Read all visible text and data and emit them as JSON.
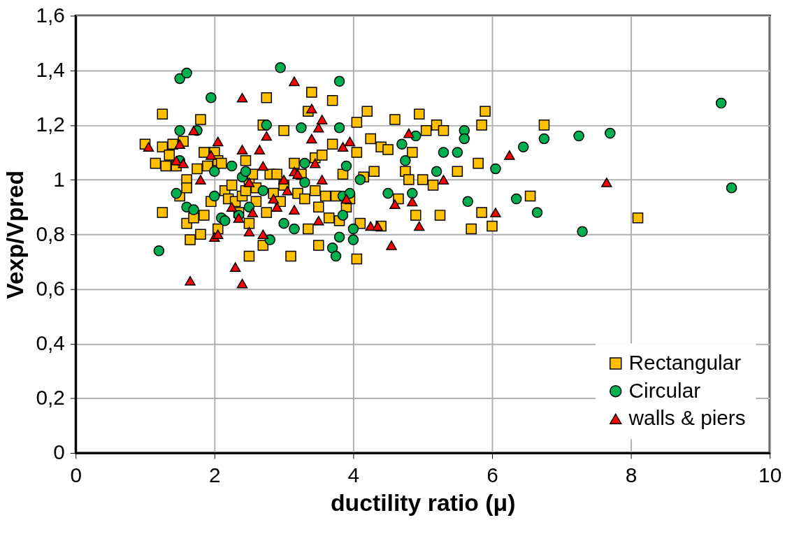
{
  "chart_data": {
    "type": "scatter",
    "xlabel": "ductility ratio (μ)",
    "ylabel": "Vexp/Vpred",
    "xlim": [
      0,
      10
    ],
    "xticks": [
      0,
      2,
      4,
      6,
      8,
      10
    ],
    "ylim": [
      0,
      1.6
    ],
    "yticks": [
      0,
      {
        "value": 0.2,
        "label": "0,2"
      },
      {
        "value": 0.4,
        "label": "0,4"
      },
      {
        "value": 0.6,
        "label": "0,6"
      },
      {
        "value": 0.8,
        "label": "0,8"
      },
      1,
      {
        "value": 1.2,
        "label": "1,2"
      },
      {
        "value": 1.4,
        "label": "1,4"
      },
      {
        "value": 1.6,
        "label": "1,6"
      }
    ],
    "grid": true,
    "legend": "bottom right",
    "series": [
      {
        "name": "Rectangular",
        "color": "#ffc000",
        "marker": "square",
        "x": [
          1.0,
          1.15,
          1.25,
          1.25,
          1.25,
          1.3,
          1.35,
          1.4,
          1.45,
          1.5,
          1.55,
          1.6,
          1.6,
          1.6,
          1.65,
          1.7,
          1.75,
          1.8,
          1.8,
          1.85,
          1.85,
          1.9,
          1.95,
          2.0,
          2.05,
          2.05,
          2.1,
          2.15,
          2.2,
          2.25,
          2.3,
          2.35,
          2.4,
          2.45,
          2.45,
          2.5,
          2.5,
          2.5,
          2.55,
          2.6,
          2.6,
          2.7,
          2.75,
          2.7,
          2.75,
          2.8,
          2.85,
          2.9,
          2.95,
          3.0,
          3.0,
          3.1,
          3.15,
          3.2,
          3.25,
          3.3,
          3.35,
          3.35,
          3.4,
          3.45,
          3.45,
          3.5,
          3.5,
          3.55,
          3.6,
          3.65,
          3.7,
          3.7,
          3.75,
          3.8,
          3.85,
          3.9,
          3.95,
          4.05,
          4.05,
          4.05,
          4.1,
          4.15,
          4.2,
          4.25,
          4.3,
          4.4,
          4.4,
          4.5,
          4.6,
          4.65,
          4.75,
          4.8,
          4.85,
          4.9,
          4.95,
          5.0,
          5.05,
          5.15,
          5.2,
          5.25,
          5.3,
          5.5,
          5.7,
          5.8,
          5.85,
          5.85,
          5.9,
          6.0,
          6.55,
          6.75,
          8.1
        ],
        "values": [
          1.13,
          1.06,
          1.24,
          0.88,
          1.12,
          1.05,
          1.09,
          1.13,
          1.05,
          0.94,
          1.14,
          1.0,
          0.97,
          0.84,
          0.78,
          0.86,
          1.04,
          1.22,
          0.8,
          1.1,
          0.87,
          1.05,
          0.92,
          1.1,
          1.07,
          0.82,
          1.06,
          0.96,
          0.93,
          0.98,
          0.92,
          0.88,
          0.94,
          1.07,
          0.96,
          1.0,
          0.84,
          0.72,
          1.02,
          0.97,
          0.92,
          1.2,
          1.3,
          0.76,
          0.88,
          1.02,
          0.95,
          1.02,
          0.92,
          1.18,
          0.98,
          0.72,
          1.06,
          0.95,
          1.02,
          0.93,
          0.82,
          1.25,
          1.32,
          1.08,
          0.96,
          0.76,
          0.9,
          1.09,
          0.94,
          0.86,
          1.29,
          1.13,
          0.94,
          0.85,
          1.02,
          0.9,
          0.93,
          0.71,
          1.1,
          1.21,
          0.84,
          1.01,
          1.25,
          1.15,
          1.03,
          0.83,
          1.12,
          1.11,
          1.22,
          0.93,
          1.03,
          1.0,
          1.1,
          0.87,
          1.24,
          1.0,
          1.18,
          0.98,
          1.2,
          0.87,
          1.18,
          1.03,
          0.82,
          1.06,
          0.88,
          1.2,
          1.25,
          0.83,
          0.94,
          1.2,
          0.86
        ]
      },
      {
        "name": "Circular",
        "color": "#00b050",
        "marker": "circle",
        "x": [
          1.2,
          1.45,
          1.5,
          1.6,
          1.5,
          1.5,
          1.6,
          1.7,
          1.75,
          1.95,
          2.0,
          2.0,
          2.1,
          2.15,
          2.25,
          2.35,
          2.4,
          2.45,
          2.5,
          2.7,
          2.75,
          2.8,
          2.95,
          3.0,
          3.15,
          3.25,
          3.3,
          3.3,
          3.7,
          3.75,
          3.8,
          3.8,
          3.85,
          3.85,
          3.8,
          3.9,
          3.95,
          4.0,
          4.0,
          4.1,
          4.5,
          4.7,
          4.75,
          4.85,
          4.9,
          5.2,
          5.3,
          5.5,
          5.6,
          5.6,
          5.65,
          6.05,
          6.35,
          6.45,
          6.65,
          6.75,
          7.25,
          7.3,
          7.7,
          9.3,
          9.45
        ],
        "values": [
          0.74,
          0.95,
          1.37,
          1.39,
          1.18,
          1.07,
          0.9,
          0.89,
          1.18,
          1.3,
          1.03,
          0.94,
          0.86,
          0.85,
          1.05,
          0.87,
          1.01,
          1.03,
          0.9,
          0.96,
          1.2,
          0.78,
          1.41,
          0.84,
          0.82,
          1.19,
          1.06,
          0.99,
          0.75,
          0.72,
          1.19,
          1.36,
          0.94,
          0.87,
          0.79,
          1.05,
          0.95,
          0.78,
          0.82,
          1.0,
          0.95,
          1.13,
          1.07,
          0.95,
          1.16,
          1.03,
          1.1,
          1.1,
          1.18,
          1.15,
          0.92,
          1.04,
          0.93,
          1.12,
          0.88,
          1.15,
          1.16,
          0.81,
          1.17,
          1.28,
          0.97
        ]
      },
      {
        "name": "walls & piers",
        "color": "#ff0000",
        "marker": "triangle",
        "x": [
          1.05,
          1.45,
          1.5,
          1.55,
          1.65,
          1.7,
          1.8,
          1.95,
          2.0,
          2.05,
          2.05,
          2.25,
          2.3,
          2.35,
          2.4,
          2.4,
          2.4,
          2.5,
          2.5,
          2.55,
          2.65,
          2.7,
          2.7,
          2.75,
          2.85,
          2.9,
          3.0,
          3.05,
          3.15,
          3.15,
          3.15,
          3.2,
          3.4,
          3.4,
          3.45,
          3.5,
          3.5,
          3.55,
          3.55,
          3.85,
          3.95,
          3.9,
          4.25,
          4.35,
          4.55,
          4.6,
          4.8,
          4.85,
          4.95,
          5.3,
          6.05,
          6.25,
          7.65
        ],
        "values": [
          1.12,
          1.07,
          1.13,
          1.06,
          0.63,
          1.18,
          1.0,
          1.09,
          0.79,
          0.8,
          1.14,
          0.9,
          0.68,
          0.86,
          1.3,
          0.62,
          1.11,
          0.99,
          0.81,
          0.88,
          1.11,
          1.05,
          0.8,
          1.16,
          0.93,
          0.9,
          1.0,
          0.96,
          1.36,
          1.03,
          0.89,
          1.02,
          1.15,
          1.26,
          1.06,
          1.19,
          0.85,
          1.22,
          1.0,
          1.12,
          1.14,
          0.93,
          0.83,
          0.83,
          0.76,
          0.91,
          1.17,
          0.92,
          0.83,
          1.0,
          0.88,
          1.09,
          0.99
        ]
      }
    ]
  }
}
